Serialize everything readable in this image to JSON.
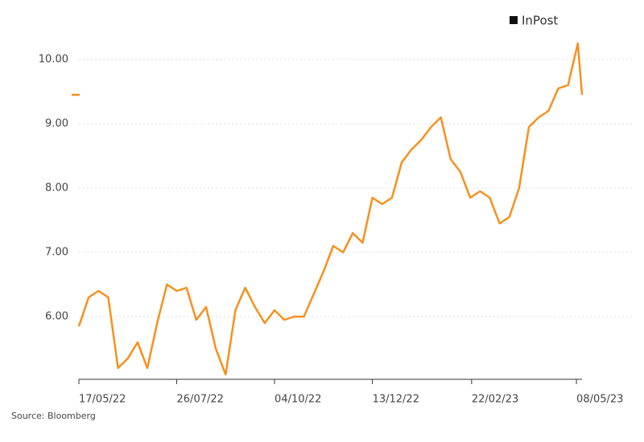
{
  "chart_data": {
    "type": "line",
    "source": "Source: Bloomberg",
    "x": [
      "2022-05-17",
      "2022-05-24",
      "2022-05-31",
      "2022-06-07",
      "2022-06-14",
      "2022-06-21",
      "2022-06-28",
      "2022-07-05",
      "2022-07-12",
      "2022-07-19",
      "2022-07-26",
      "2022-08-02",
      "2022-08-09",
      "2022-08-16",
      "2022-08-23",
      "2022-08-30",
      "2022-09-06",
      "2022-09-13",
      "2022-09-20",
      "2022-09-27",
      "2022-10-04",
      "2022-10-11",
      "2022-10-18",
      "2022-10-25",
      "2022-11-01",
      "2022-11-08",
      "2022-11-15",
      "2022-11-22",
      "2022-11-29",
      "2022-12-06",
      "2022-12-13",
      "2022-12-20",
      "2022-12-27",
      "2023-01-03",
      "2023-01-10",
      "2023-01-17",
      "2023-01-24",
      "2023-01-31",
      "2023-02-07",
      "2023-02-14",
      "2023-02-21",
      "2023-02-28",
      "2023-03-07",
      "2023-03-14",
      "2023-03-21",
      "2023-03-28",
      "2023-04-04",
      "2023-04-11",
      "2023-04-18",
      "2023-04-25",
      "2023-05-02",
      "2023-05-09",
      "2023-05-12"
    ],
    "series": [
      {
        "name": "InPost",
        "color": "#f7901e",
        "values": [
          5.85,
          6.3,
          6.4,
          6.3,
          5.2,
          5.35,
          5.6,
          5.2,
          5.9,
          6.5,
          6.4,
          6.45,
          5.95,
          6.15,
          5.5,
          5.1,
          6.1,
          6.45,
          6.15,
          5.9,
          6.1,
          5.95,
          6.0,
          6.0,
          6.35,
          6.7,
          7.1,
          7.0,
          7.3,
          7.15,
          7.85,
          7.75,
          7.85,
          8.4,
          8.6,
          8.75,
          8.95,
          9.1,
          8.45,
          8.25,
          7.85,
          7.95,
          7.85,
          7.45,
          7.55,
          8.0,
          8.95,
          9.1,
          9.2,
          9.55,
          9.6,
          10.25,
          9.45
        ]
      }
    ],
    "xlim": [
      "2022-05-17",
      "2023-05-12"
    ],
    "xticks": [
      {
        "value": "2022-05-17",
        "label": "17/05/22"
      },
      {
        "value": "2022-07-26",
        "label": "26/07/22"
      },
      {
        "value": "2022-10-04",
        "label": "04/10/22"
      },
      {
        "value": "2022-12-13",
        "label": "13/12/22"
      },
      {
        "value": "2023-02-22",
        "label": "22/02/23"
      },
      {
        "value": "2023-05-08",
        "label": "08/05/23"
      }
    ],
    "ylim": [
      5.025,
      10.6
    ],
    "yticks": [
      {
        "value": 6,
        "label": "6.00"
      },
      {
        "value": 7,
        "label": "7.00"
      },
      {
        "value": 8,
        "label": "8.00"
      },
      {
        "value": 9,
        "label": "9.00"
      },
      {
        "value": 10,
        "label": "10.00"
      }
    ],
    "grid": true,
    "legend": "top-right"
  }
}
